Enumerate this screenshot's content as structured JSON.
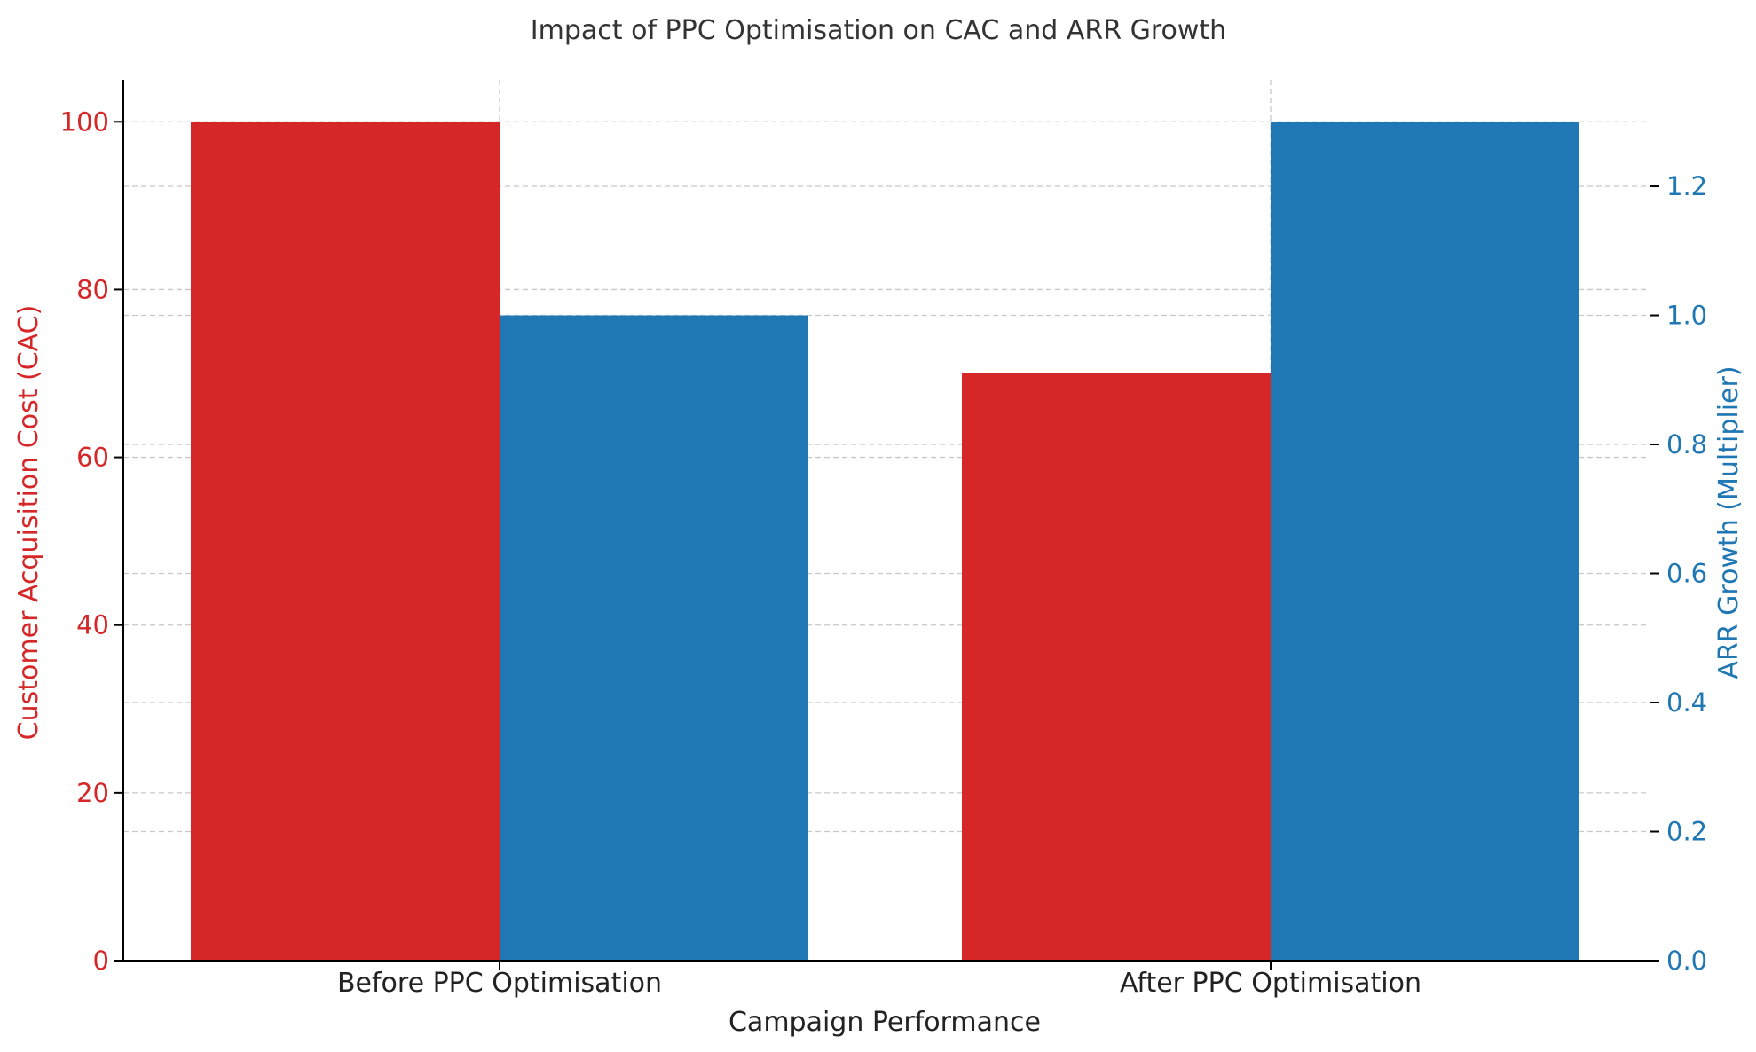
{
  "chart_data": {
    "type": "bar",
    "title": "Impact of PPC Optimisation on CAC and ARR Growth",
    "xlabel": "Campaign Performance",
    "categories": [
      "Before PPC Optimisation",
      "After PPC Optimisation"
    ],
    "series": [
      {
        "name": "Customer Acquisition Cost (CAC)",
        "axis": "left",
        "values": [
          100,
          70
        ],
        "color": "#d62728"
      },
      {
        "name": "ARR Growth (Multiplier)",
        "axis": "right",
        "values": [
          1.0,
          1.3
        ],
        "color": "#1f77b4"
      }
    ],
    "y_left": {
      "label": "Customer Acquisition Cost (CAC)",
      "ylim": [
        0,
        105
      ],
      "ticks": [
        0,
        20,
        40,
        60,
        80,
        100
      ],
      "tick_labels": [
        "0",
        "20",
        "40",
        "60",
        "80",
        "100"
      ]
    },
    "y_right": {
      "label": "ARR Growth (Multiplier)",
      "ylim": [
        0,
        1.365
      ],
      "ticks": [
        0.0,
        0.2,
        0.4,
        0.6,
        0.8,
        1.0,
        1.2
      ],
      "tick_labels": [
        "0.0",
        "0.2",
        "0.4",
        "0.6",
        "0.8",
        "1.0",
        "1.2"
      ]
    },
    "grid": true,
    "legend": "none"
  }
}
